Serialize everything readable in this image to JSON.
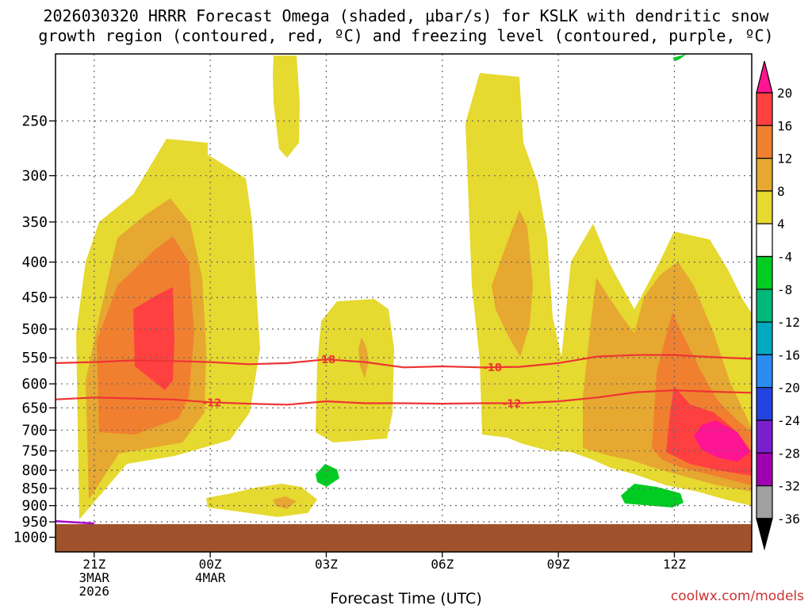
{
  "title": {
    "line1": "2026030320 HRRR Forecast Omega (shaded, μbar/s) for KSLK with dendritic snow",
    "line2": "growth region (contoured, red, ºC) and freezing level (contoured, purple, ºC)"
  },
  "chart_data": {
    "type": "heatmap",
    "title": "2026030320 HRRR Forecast Omega (shaded, μbar/s) for KSLK with dendritic snow growth region (contoured, red, ºC) and freezing level (contoured, purple, ºC)",
    "xlabel": "Forecast Time (UTC)",
    "x_range_hours": [
      -1,
      17
    ],
    "x_ticks": [
      {
        "hour": 0,
        "lines": [
          "21Z",
          "3MAR",
          "2026"
        ]
      },
      {
        "hour": 3,
        "lines": [
          "00Z",
          "4MAR"
        ]
      },
      {
        "hour": 6,
        "lines": [
          "03Z"
        ]
      },
      {
        "hour": 9,
        "lines": [
          "06Z"
        ]
      },
      {
        "hour": 12,
        "lines": [
          "09Z"
        ]
      },
      {
        "hour": 15,
        "lines": [
          "12Z"
        ]
      }
    ],
    "y_label_units": "hPa",
    "y_range_hpa": [
      200,
      1050
    ],
    "y_ticks": [
      250,
      300,
      350,
      400,
      450,
      500,
      550,
      600,
      650,
      700,
      750,
      800,
      850,
      900,
      950,
      1000
    ],
    "colorbar": {
      "labels": [
        20,
        16,
        12,
        8,
        4,
        -4,
        -8,
        -12,
        -16,
        -20,
        -24,
        -28,
        -32,
        -36
      ],
      "colors": [
        "#ff1493",
        "#ff4040",
        "#f08030",
        "#e6a830",
        "#e6d930",
        "#ffffff",
        "#00cc22",
        "#00b878",
        "#00a8c0",
        "#2a8cf0",
        "#2244e0",
        "#7a1fd0",
        "#a000b0",
        "#a0a0a0",
        "#000000"
      ]
    },
    "contours": [
      {
        "label": "-18",
        "color": "#ee3333",
        "points": [
          [
            -1,
            560
          ],
          [
            0,
            558
          ],
          [
            1,
            555
          ],
          [
            2,
            556
          ],
          [
            3,
            558
          ],
          [
            4,
            562
          ],
          [
            5,
            560
          ],
          [
            6,
            553
          ],
          [
            7,
            558
          ],
          [
            8,
            568
          ],
          [
            9,
            566
          ],
          [
            10,
            568
          ],
          [
            11,
            567
          ],
          [
            12,
            560
          ],
          [
            13,
            548
          ],
          [
            14,
            545
          ],
          [
            15,
            545
          ],
          [
            16,
            549
          ],
          [
            17,
            552
          ]
        ]
      },
      {
        "label": "-12",
        "color": "#ee3333",
        "points": [
          [
            -1,
            632
          ],
          [
            0,
            628
          ],
          [
            1,
            630
          ],
          [
            2,
            632
          ],
          [
            3,
            638
          ],
          [
            4,
            641
          ],
          [
            5,
            643
          ],
          [
            6,
            636
          ],
          [
            7,
            640
          ],
          [
            8,
            640
          ],
          [
            9,
            641
          ],
          [
            10,
            640
          ],
          [
            11,
            640
          ],
          [
            12,
            636
          ],
          [
            13,
            628
          ],
          [
            14,
            617
          ],
          [
            15,
            613
          ],
          [
            16,
            616
          ],
          [
            17,
            618
          ]
        ]
      }
    ],
    "freezing_level": {
      "color": "#aa00cc",
      "points": [
        [
          -1,
          948
        ],
        [
          0,
          955
        ]
      ]
    }
  },
  "credit": "coolwx.com/models"
}
